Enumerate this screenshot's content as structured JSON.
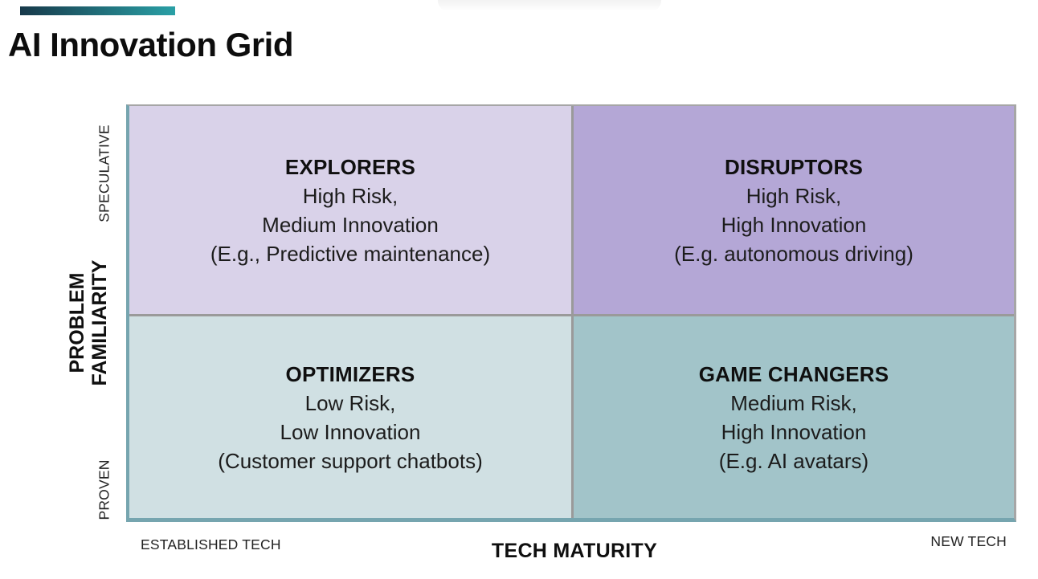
{
  "title": "AI Innovation Grid",
  "decor": {
    "brand_bar": {
      "gradient_start": "#17394a",
      "gradient_end": "#2aa0a6",
      "css": "linear-gradient(90deg, #17394a, #2aa0a6)"
    }
  },
  "matrix": {
    "grid_line_color": "#9a9a9a",
    "axis_line_color": "#76a5af",
    "quadrants": [
      {
        "id": "explorers",
        "title": "EXPLORERS",
        "lines": [
          "High Risk,",
          "Medium Innovation",
          "(E.g., Predictive maintenance)"
        ],
        "color": "#d9d2e9"
      },
      {
        "id": "disruptors",
        "title": "DISRUPTORS",
        "lines": [
          "High Risk,",
          "High Innovation",
          "(E.g. autonomous driving)"
        ],
        "color": "#b4a7d6"
      },
      {
        "id": "optimizers",
        "title": "OPTIMIZERS",
        "lines": [
          "Low Risk,",
          "Low Innovation",
          "(Customer support chatbots)"
        ],
        "color": "#d0e0e3"
      },
      {
        "id": "game-changers",
        "title": "GAME CHANGERS",
        "lines": [
          "Medium Risk,",
          "High Innovation",
          "(E.g. AI avatars)"
        ],
        "color": "#a2c4c9"
      }
    ]
  },
  "axes": {
    "y": {
      "label_line1": "PROBLEM",
      "label_line2": "FAMILIARITY",
      "top_tick": "SPECULATIVE",
      "bottom_tick": "PROVEN"
    },
    "x": {
      "label": "TECH MATURITY",
      "left_tick": "ESTABLISHED TECH",
      "right_tick": "NEW TECH"
    }
  }
}
